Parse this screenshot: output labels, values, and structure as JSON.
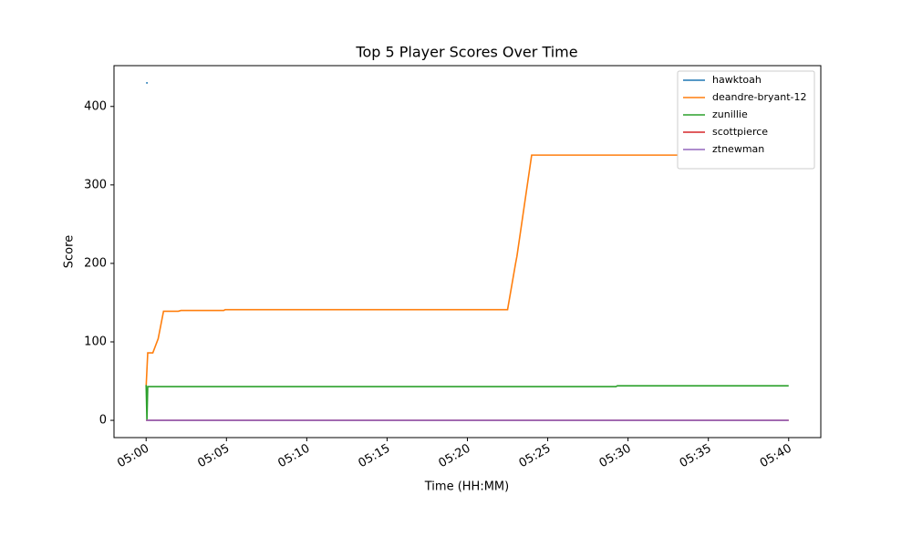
{
  "chart_data": {
    "type": "line",
    "title": "Top 5 Player Scores Over Time",
    "xlabel": "Time (HH:MM)",
    "ylabel": "Score",
    "xlim": [
      "04:58",
      "05:42"
    ],
    "xticks": [
      "05:00",
      "05:05",
      "05:10",
      "05:15",
      "05:20",
      "05:25",
      "05:30",
      "05:35",
      "05:40"
    ],
    "ylim": [
      -22,
      452
    ],
    "yticks": [
      0,
      100,
      200,
      300,
      400
    ],
    "legend": "upper right",
    "series": [
      {
        "name": "hawktoah",
        "color": "#1f77b4",
        "x": [
          "05:00:00",
          "05:00:06"
        ],
        "values": [
          430,
          430
        ]
      },
      {
        "name": "deandre-bryant-12",
        "color": "#ff7f0e",
        "x": [
          "05:00:00",
          "05:00:06",
          "05:00:25",
          "05:00:45",
          "05:01:05",
          "05:02:00",
          "05:02:10",
          "05:04:50",
          "05:04:55",
          "05:22:30",
          "05:23:00",
          "05:23:05",
          "05:24:00",
          "05:40:00"
        ],
        "values": [
          43,
          86,
          86,
          104,
          139,
          139,
          140,
          140,
          141,
          141,
          200,
          209,
          338,
          338
        ]
      },
      {
        "name": "zunillie",
        "color": "#2ca02c",
        "x": [
          "05:00:00",
          "05:00:03",
          "05:00:06",
          "05:29:15",
          "05:29:20",
          "05:40:00"
        ],
        "values": [
          45,
          0,
          43,
          43,
          44,
          44
        ]
      },
      {
        "name": "scottpierce",
        "color": "#d62728",
        "x": [
          "05:00:00",
          "05:40:00"
        ],
        "values": [
          0,
          0
        ]
      },
      {
        "name": "ztnewman",
        "color": "#9467bd",
        "x": [
          "05:00:00",
          "05:40:00"
        ],
        "values": [
          0,
          0
        ]
      }
    ]
  }
}
